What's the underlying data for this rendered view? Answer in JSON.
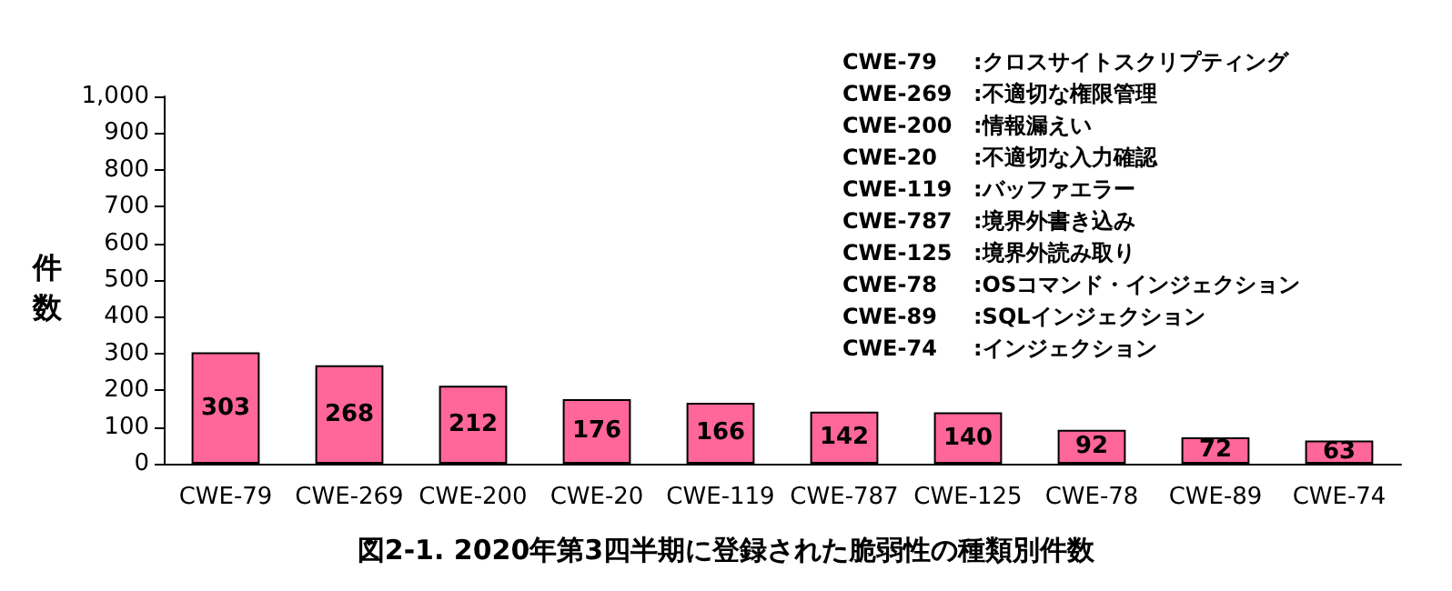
{
  "chart_data": {
    "type": "bar",
    "title": "図2-1. 2020年第3四半期に登録された脆弱性の種類別件数",
    "ylabel": "件数",
    "categories": [
      "CWE-79",
      "CWE-269",
      "CWE-200",
      "CWE-20",
      "CWE-119",
      "CWE-787",
      "CWE-125",
      "CWE-78",
      "CWE-89",
      "CWE-74"
    ],
    "values": [
      303,
      268,
      212,
      176,
      166,
      142,
      140,
      92,
      72,
      63
    ],
    "color": "#ff6699",
    "ylim": [
      0,
      1000
    ],
    "yticks": [
      0,
      100,
      200,
      300,
      400,
      500,
      600,
      700,
      800,
      900,
      {
        "value": 1000,
        "label": "1,000"
      }
    ],
    "grid": false,
    "data_labels": true,
    "annotations": [
      "CWE-79　:クロスサイトスクリプティング",
      "CWE-269　:不適切な権限管理",
      "CWE-200　:情報漏えい",
      "CWE-20　:不適切な入力確認",
      "CWE-119　:バッファエラー",
      "CWE-787　:境界外書き込み",
      "CWE-125　:境界外読み取り",
      "CWE-78　:OSコマンド・インジェクション",
      "CWE-89　:SQLインジェクション",
      "CWE-74　:インジェクション"
    ]
  }
}
